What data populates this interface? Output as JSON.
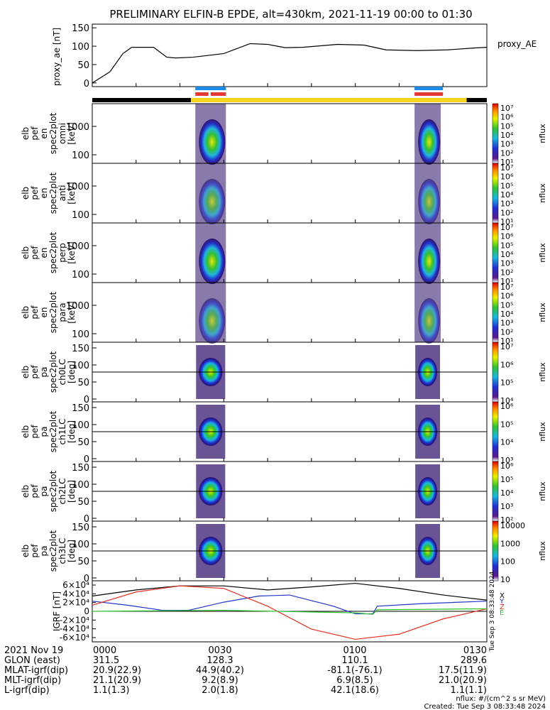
{
  "title": "PRELIMINARY ELFIN-B EPDE, alt=430km, 2021-11-19 00:00 to 01:30",
  "colors": {
    "axis": "#000000",
    "flag_black": "#000000",
    "flag_yellow": "#f5d31c",
    "flag_blue": "#1e88e5",
    "flag_red": "#e53935",
    "geo_x": "#000000",
    "geo_y": "#1f35c9",
    "geo_z": "#e53020",
    "geo_e": "#2fc22f",
    "spec_lo": "#2a0c66",
    "spec_mid": "#1ab8e0",
    "spec_hi": "#e8f000"
  },
  "chart_data": [
    {
      "type": "line",
      "name": "proxy_ae",
      "ylabel": "proxy_ae [nT]",
      "legend": "proxy_AE",
      "ylim": [
        -10,
        160
      ],
      "yticks": [
        "150",
        "100",
        "50",
        "0"
      ],
      "x_minutes": [
        0,
        4,
        7,
        9,
        14,
        17,
        19,
        23,
        30,
        36,
        40,
        44,
        48,
        56,
        62,
        67,
        74,
        81,
        87,
        90
      ],
      "values": [
        0,
        30,
        80,
        97,
        97,
        70,
        68,
        70,
        80,
        107,
        105,
        96,
        97,
        105,
        103,
        90,
        88,
        90,
        95,
        97
      ]
    },
    {
      "type": "bar",
      "name": "flags",
      "segments": [
        {
          "from": 0,
          "to": 22.5,
          "color": "black"
        },
        {
          "from": 22.5,
          "to": 85.4,
          "color": "yellow"
        },
        {
          "from": 85.4,
          "to": 90,
          "color": "black"
        }
      ],
      "blue_bars": [
        [
          23.5,
          30.5
        ],
        [
          73.5,
          80.0
        ]
      ],
      "red_bars": [
        [
          23.5,
          26.5
        ],
        [
          27.0,
          30.5
        ],
        [
          73.5,
          80.0
        ]
      ]
    },
    {
      "type": "heatmap",
      "panels": [
        {
          "ylabel": [
            "elb",
            "pef",
            "en",
            "spec2plot",
            "omni",
            "[keV]"
          ],
          "yticks": [
            "1000",
            "100"
          ],
          "colorbar": [
            "10⁷",
            "10⁶",
            "10⁵",
            "10⁴",
            "10³",
            "10²",
            "10¹"
          ],
          "unit": "nflux"
        },
        {
          "ylabel": [
            "elb",
            "pef",
            "en",
            "spec2plot",
            "anti",
            "[keV]"
          ],
          "yticks": [
            "1000",
            "100"
          ],
          "colorbar": [
            "10⁷",
            "10⁶",
            "10⁵",
            "10⁴",
            "10³",
            "10²",
            "10¹"
          ],
          "unit": "nflux"
        },
        {
          "ylabel": [
            "elb",
            "pef",
            "en",
            "spec2plot",
            "perp",
            "[keV]"
          ],
          "yticks": [
            "1000",
            "100"
          ],
          "colorbar": [
            "10⁷",
            "10⁶",
            "10⁵",
            "10⁴",
            "10³",
            "10²",
            "10¹"
          ],
          "unit": "nflux"
        },
        {
          "ylabel": [
            "elb",
            "pef",
            "en",
            "spec2plot",
            "para",
            "[keV]"
          ],
          "yticks": [
            "1000",
            "100"
          ],
          "colorbar": [
            "10⁷",
            "10⁶",
            "10⁵",
            "10⁴",
            "10³",
            "10²",
            "10¹"
          ],
          "unit": "nflux"
        },
        {
          "ylabel": [
            "elb",
            "pef",
            "pa",
            "spec2plot",
            "ch0LC",
            "[deg]"
          ],
          "yticks": [
            "150",
            "100",
            "50",
            "0"
          ],
          "colorbar": [
            "10⁷",
            "10⁶",
            "10⁵",
            "10⁴"
          ],
          "unit": "nflux"
        },
        {
          "ylabel": [
            "elb",
            "pef",
            "pa",
            "spec2plot",
            "ch1LC",
            "[deg]"
          ],
          "yticks": [
            "150",
            "100",
            "50",
            "0"
          ],
          "colorbar": [
            "10⁶",
            "10⁵",
            "10⁴",
            "10³"
          ],
          "unit": "nflux"
        },
        {
          "ylabel": [
            "elb",
            "pef",
            "pa",
            "spec2plot",
            "ch2LC",
            "[deg]"
          ],
          "yticks": [
            "150",
            "100",
            "50",
            "0"
          ],
          "colorbar": [
            "10⁶",
            "10⁵",
            "10⁴",
            "10³",
            "10²"
          ],
          "unit": "nflux"
        },
        {
          "ylabel": [
            "elb",
            "pef",
            "pa",
            "spec2plot",
            "ch3LC",
            "[deg]"
          ],
          "yticks": [
            "150",
            "100",
            "50",
            "0"
          ],
          "colorbar": [
            "10000",
            "1000",
            "100",
            "10"
          ],
          "unit": "nflux"
        }
      ]
    },
    {
      "type": "line",
      "name": "igrf",
      "ylabel": "IGRF [nT]",
      "yticks": [
        "6×10⁴",
        "4×10⁴",
        "2×10⁴",
        "0",
        "-2×10⁴",
        "-4×10⁴",
        "-6×10⁴"
      ],
      "ylim": [
        -60000,
        60000
      ],
      "legend": [
        "X",
        "Y",
        "Z",
        "E"
      ],
      "series": [
        {
          "name": "X",
          "x_minutes": [
            0,
            10,
            20,
            30,
            40,
            50,
            60,
            70,
            80,
            90
          ],
          "values": [
            30000,
            42000,
            50000,
            50000,
            42000,
            48000,
            55000,
            45000,
            32000,
            22000
          ]
        },
        {
          "name": "Y",
          "x_minutes": [
            0,
            8,
            16,
            22,
            30,
            38,
            45,
            55,
            60,
            64,
            65,
            75,
            90
          ],
          "values": [
            20000,
            12000,
            2000,
            2000,
            18000,
            30000,
            32000,
            10000,
            -5000,
            -5000,
            10000,
            15000,
            20000
          ]
        },
        {
          "name": "Z",
          "x_minutes": [
            0,
            10,
            20,
            30,
            40,
            50,
            60,
            70,
            80,
            90
          ],
          "values": [
            12000,
            38000,
            50000,
            45000,
            10000,
            -35000,
            -55000,
            -45000,
            -15000,
            5000
          ]
        },
        {
          "name": "E",
          "x_minutes": [
            0,
            30,
            60,
            64,
            65,
            90
          ],
          "values": [
            0,
            2000,
            -3000,
            -6000,
            3000,
            5000
          ]
        }
      ]
    }
  ],
  "footer": {
    "rows": [
      {
        "label": "2021 Nov 19",
        "v1": "0000",
        "v2": "0030",
        "v3": "0100",
        "v4": "0130"
      },
      {
        "label": "GLON (east)",
        "v1": "311.5",
        "v2": "128.3",
        "v3": "110.1",
        "v4": "289.6"
      },
      {
        "label": "MLAT-igrf(dip)",
        "v1": "20.9(22.9)",
        "v2": "44.9(40.2)",
        "v3": "-81.1(-76.1)",
        "v4": "17.5(11.9)"
      },
      {
        "label": "MLT-igrf(dip)",
        "v1": "21.1(20.9)",
        "v2": "9.2(8.9)",
        "v3": "6.9(8.5)",
        "v4": "21.0(20.9)"
      },
      {
        "label": "L-igrf(dip)",
        "v1": "1.1(1.3)",
        "v2": "2.0(1.8)",
        "v3": "42.1(18.6)",
        "v4": "1.1(1.1)"
      }
    ],
    "unit_note": "nflux: #/(cm^2 s sr MeV)",
    "created": "Created: Tue Sep  3 08:33:48 2024",
    "side_stamp": "Tue Sep  3 08:33:48 2024"
  }
}
